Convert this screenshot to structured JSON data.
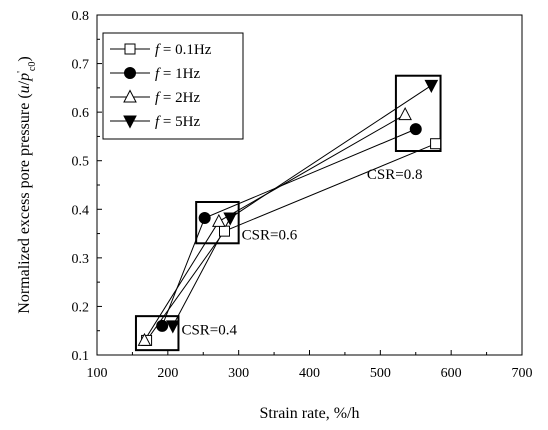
{
  "chart_data": {
    "type": "scatter",
    "xlabel": "Strain rate, %/h",
    "ylabel": {
      "prefix": "Normalized excess pore pressure (",
      "u": "u",
      "slash": "/",
      "p": "p",
      "prime": "'",
      "sub": "c0",
      "suffix": ")"
    },
    "xlim": [
      100,
      700
    ],
    "ylim": [
      0.1,
      0.8
    ],
    "xticks": [
      100,
      200,
      300,
      400,
      500,
      600,
      700
    ],
    "yticks": [
      0.1,
      0.2,
      0.3,
      0.4,
      0.5,
      0.6,
      0.7,
      0.8
    ],
    "grid": false,
    "legend_position": "top-left",
    "series": [
      {
        "name": "f = 0.1Hz",
        "name_var": "f",
        "name_rest": " = 0.1Hz",
        "marker": "square-open",
        "x": [
          170,
          280,
          578
        ],
        "y": [
          0.13,
          0.355,
          0.535
        ]
      },
      {
        "name": "f = 1Hz",
        "name_var": "f",
        "name_rest": " = 1Hz",
        "marker": "circle-filled",
        "x": [
          192,
          252,
          550
        ],
        "y": [
          0.16,
          0.382,
          0.565
        ]
      },
      {
        "name": "f = 2Hz",
        "name_var": "f",
        "name_rest": " = 2Hz",
        "marker": "triangle-open",
        "x": [
          167,
          272,
          535
        ],
        "y": [
          0.13,
          0.375,
          0.595
        ]
      },
      {
        "name": "f = 5Hz",
        "name_var": "f",
        "name_rest": " = 5Hz",
        "marker": "triangle-down-filled",
        "x": [
          207,
          288,
          572
        ],
        "y": [
          0.16,
          0.382,
          0.655
        ]
      }
    ],
    "groups": [
      {
        "label": "CSR=0.4",
        "x_range": [
          155,
          215
        ],
        "y_range": [
          0.11,
          0.18
        ]
      },
      {
        "label": "CSR=0.6",
        "x_range": [
          240,
          300
        ],
        "y_range": [
          0.33,
          0.415
        ]
      },
      {
        "label": "CSR=0.8",
        "x_range": [
          522,
          585
        ],
        "y_range": [
          0.52,
          0.675
        ]
      }
    ]
  }
}
